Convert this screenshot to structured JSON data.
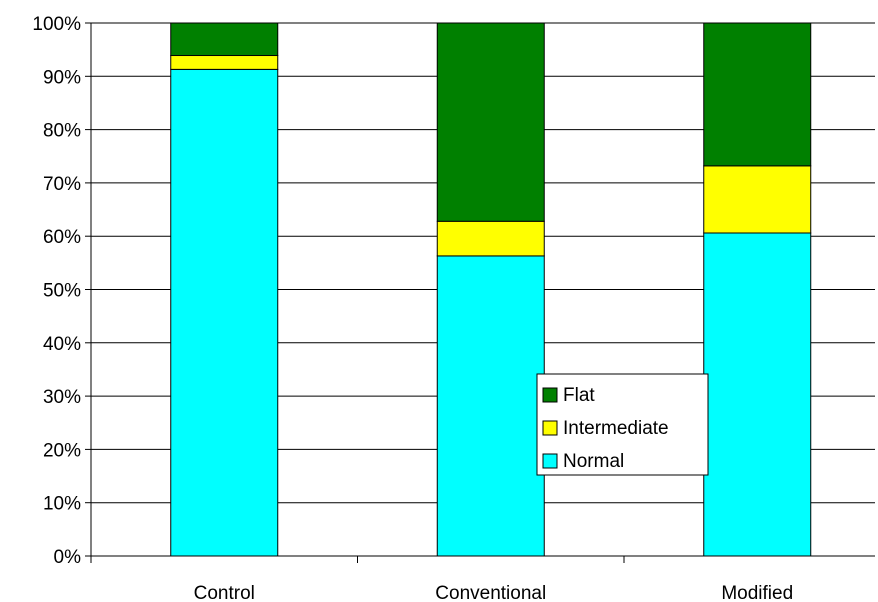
{
  "chart_data": {
    "type": "bar",
    "stacked": true,
    "normalized": true,
    "title": "",
    "xlabel": "",
    "ylabel": "",
    "ylim": [
      0,
      100
    ],
    "y_tick_step": 10,
    "y_tick_suffix": "%",
    "grid": true,
    "legend_position": "center-right",
    "categories": [
      "Control",
      "Conventional",
      "Modified"
    ],
    "series": [
      {
        "name": "Normal",
        "color": "#00FFFF",
        "values": [
          91.3,
          56.3,
          60.6
        ]
      },
      {
        "name": "Intermediate",
        "color": "#FFFF00",
        "values": [
          2.6,
          6.5,
          12.6
        ]
      },
      {
        "name": "Flat",
        "color": "#008000",
        "values": [
          6.1,
          37.2,
          26.8
        ]
      }
    ],
    "legend_order": [
      "Flat",
      "Intermediate",
      "Normal"
    ]
  }
}
